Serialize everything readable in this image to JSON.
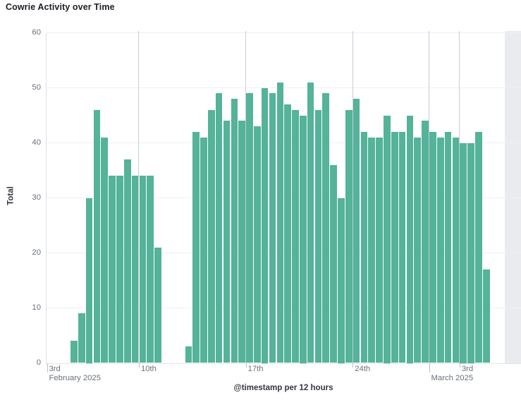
{
  "title": "Cowrie Activity over Time",
  "chart_data": {
    "type": "bar",
    "title": "Cowrie Activity over Time",
    "xlabel": "@timestamp per 12 hours",
    "ylabel": "Total",
    "ylim": [
      0,
      60
    ],
    "grid": true,
    "legend_position": "none",
    "bar_color": "#54b399",
    "future_band_color": "#e9ebef",
    "bucket_hours": 12,
    "y_ticks": [
      0,
      10,
      20,
      30,
      40,
      50,
      60
    ],
    "x_ticks": [
      {
        "label": "3rd",
        "index": -5,
        "row": 1,
        "clamp": true
      },
      {
        "label": "February 2025",
        "index": -5,
        "row": 2,
        "clamp": true
      },
      {
        "label": "10th",
        "index": 9,
        "row": 1
      },
      {
        "label": "17th",
        "index": 23,
        "row": 1
      },
      {
        "label": "24th",
        "index": 37,
        "row": 1
      },
      {
        "label": "March 2025",
        "index": 47,
        "row": 2
      },
      {
        "label": "3rd",
        "index": 51,
        "row": 1
      }
    ],
    "x": [
      "2025-02-05 12:00",
      "2025-02-06 00:00",
      "2025-02-06 12:00",
      "2025-02-07 00:00",
      "2025-02-07 12:00",
      "2025-02-08 00:00",
      "2025-02-08 12:00",
      "2025-02-09 00:00",
      "2025-02-09 12:00",
      "2025-02-10 00:00",
      "2025-02-10 12:00",
      "2025-02-11 00:00",
      "2025-02-11 12:00",
      "2025-02-12 00:00",
      "2025-02-12 12:00",
      "2025-02-13 00:00",
      "2025-02-13 12:00",
      "2025-02-14 00:00",
      "2025-02-14 12:00",
      "2025-02-15 00:00",
      "2025-02-15 12:00",
      "2025-02-16 00:00",
      "2025-02-16 12:00",
      "2025-02-17 00:00",
      "2025-02-17 12:00",
      "2025-02-18 00:00",
      "2025-02-18 12:00",
      "2025-02-19 00:00",
      "2025-02-19 12:00",
      "2025-02-20 00:00",
      "2025-02-20 12:00",
      "2025-02-21 00:00",
      "2025-02-21 12:00",
      "2025-02-22 00:00",
      "2025-02-22 12:00",
      "2025-02-23 00:00",
      "2025-02-23 12:00",
      "2025-02-24 00:00",
      "2025-02-24 12:00",
      "2025-02-25 00:00",
      "2025-02-25 12:00",
      "2025-02-26 00:00",
      "2025-02-26 12:00",
      "2025-02-27 00:00",
      "2025-02-27 12:00",
      "2025-02-28 00:00",
      "2025-02-28 12:00",
      "2025-03-01 00:00",
      "2025-03-01 12:00",
      "2025-03-02 00:00",
      "2025-03-02 12:00",
      "2025-03-03 00:00",
      "2025-03-03 12:00",
      "2025-03-04 00:00",
      "2025-03-04 12:00"
    ],
    "values": [
      4,
      9,
      30,
      46,
      41,
      34,
      34,
      37,
      34,
      34,
      34,
      21,
      null,
      null,
      null,
      3,
      42,
      41,
      46,
      49,
      44,
      48,
      44,
      49,
      43,
      50,
      49,
      51,
      47,
      46,
      45,
      51,
      46,
      49,
      36,
      30,
      46,
      48,
      42,
      41,
      41,
      45,
      42,
      42,
      45,
      41,
      44,
      42,
      41,
      42,
      41,
      40,
      40,
      42,
      17
    ]
  }
}
